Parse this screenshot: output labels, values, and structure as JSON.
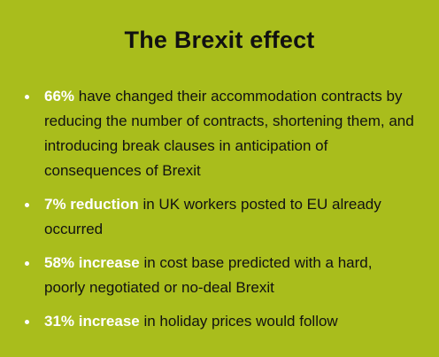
{
  "colors": {
    "background": "#a9bd1c",
    "text": "#111111",
    "highlight": "#ffffff"
  },
  "title": "The Brexit effect",
  "facts": [
    {
      "highlight": "66%",
      "text": " have changed their accommodation contracts by reducing the number of contracts, shortening them, and introducing break clauses in anticipation of consequences of Brexit"
    },
    {
      "highlight": "7% reduction",
      "text": " in UK workers posted to EU already occurred"
    },
    {
      "highlight": "58% increase",
      "text": " in cost base predicted with a hard, poorly negotiated or no-deal Brexit"
    },
    {
      "highlight": "31% increase",
      "text": " in holiday prices would follow"
    }
  ]
}
